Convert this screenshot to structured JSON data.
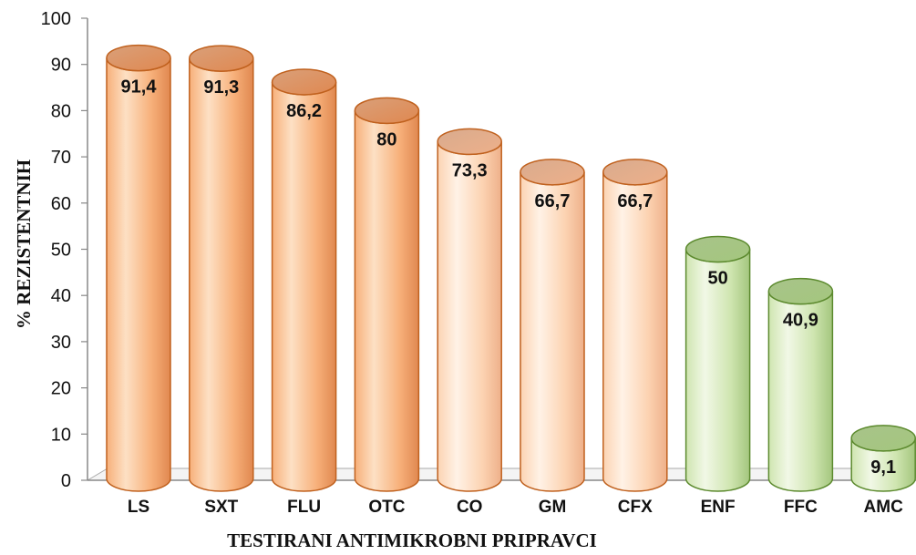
{
  "chart_data": {
    "type": "bar",
    "style": "3d-cylinder",
    "categories": [
      "LS",
      "SXT",
      "FLU",
      "OTC",
      "CO",
      "GM",
      "CFX",
      "ENF",
      "FFC",
      "AMC"
    ],
    "values": [
      91.4,
      91.3,
      86.2,
      80,
      73.3,
      66.7,
      66.7,
      50,
      40.9,
      9.1
    ],
    "value_labels": [
      "91,4",
      "91,3",
      "86,2",
      "80",
      "73,3",
      "66,7",
      "66,7",
      "50",
      "40,9",
      "9,1"
    ],
    "color_groups": [
      "orange",
      "orange",
      "orange",
      "orange",
      "peach",
      "peach",
      "peach",
      "green",
      "green",
      "green"
    ],
    "colors": {
      "orange": {
        "light": "#fde0c4",
        "main": "#f7b07a",
        "dark": "#e08850",
        "edge": "#c0611e",
        "top": "#d9a07a"
      },
      "peach": {
        "light": "#fff2e6",
        "main": "#fcd3b2",
        "dark": "#eeb08a",
        "edge": "#c0611e",
        "top": "#d8ab8e"
      },
      "green": {
        "light": "#f1f8e6",
        "main": "#cfe5b0",
        "dark": "#a4c67e",
        "edge": "#5c8a2e",
        "top": "#a8c48a"
      }
    },
    "ylim": [
      0,
      100
    ],
    "yticks": [
      0,
      10,
      20,
      30,
      40,
      50,
      60,
      70,
      80,
      90,
      100
    ],
    "ylabel": "% REZISTENTNIH",
    "xlabel": "TESTIRANI ANTIMIKROBNI PRIPRAVCI",
    "grid": false,
    "legend": "none"
  }
}
